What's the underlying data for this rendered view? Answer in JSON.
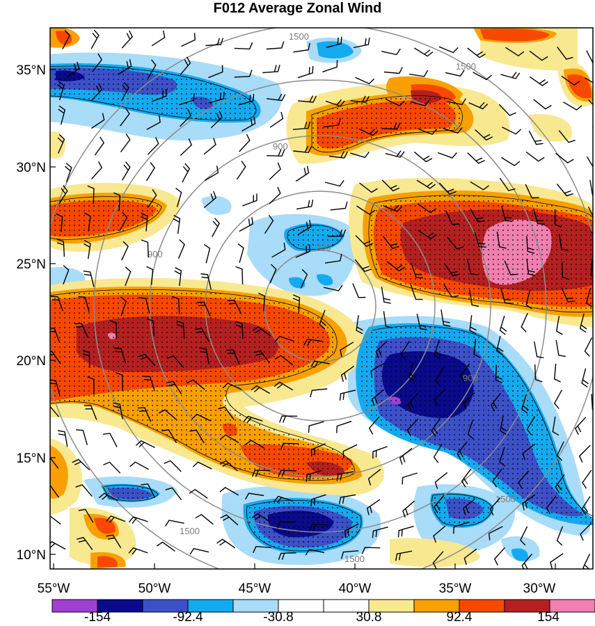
{
  "title": "F012 Average Zonal Wind",
  "lat_labels": [
    "35°N",
    "30°N",
    "25°N",
    "20°N",
    "15°N",
    "10°N"
  ],
  "lon_labels": [
    "55°W",
    "50°W",
    "45°W",
    "40°W",
    "35°W",
    "30°W"
  ],
  "colorbar": {
    "colors": [
      "#a040d0",
      "#0a0a8c",
      "#3c50c8",
      "#14aaf0",
      "#a8dcf8",
      "#ffffff",
      "#ffffff",
      "#f8e890",
      "#f8a000",
      "#f84800",
      "#b42020",
      "#f080b0"
    ],
    "labels": [
      "-154",
      "-92.4",
      "-30.8",
      "30.8",
      "92.4",
      "154"
    ]
  },
  "range_rings": [
    "300",
    "900",
    "1500"
  ]
}
